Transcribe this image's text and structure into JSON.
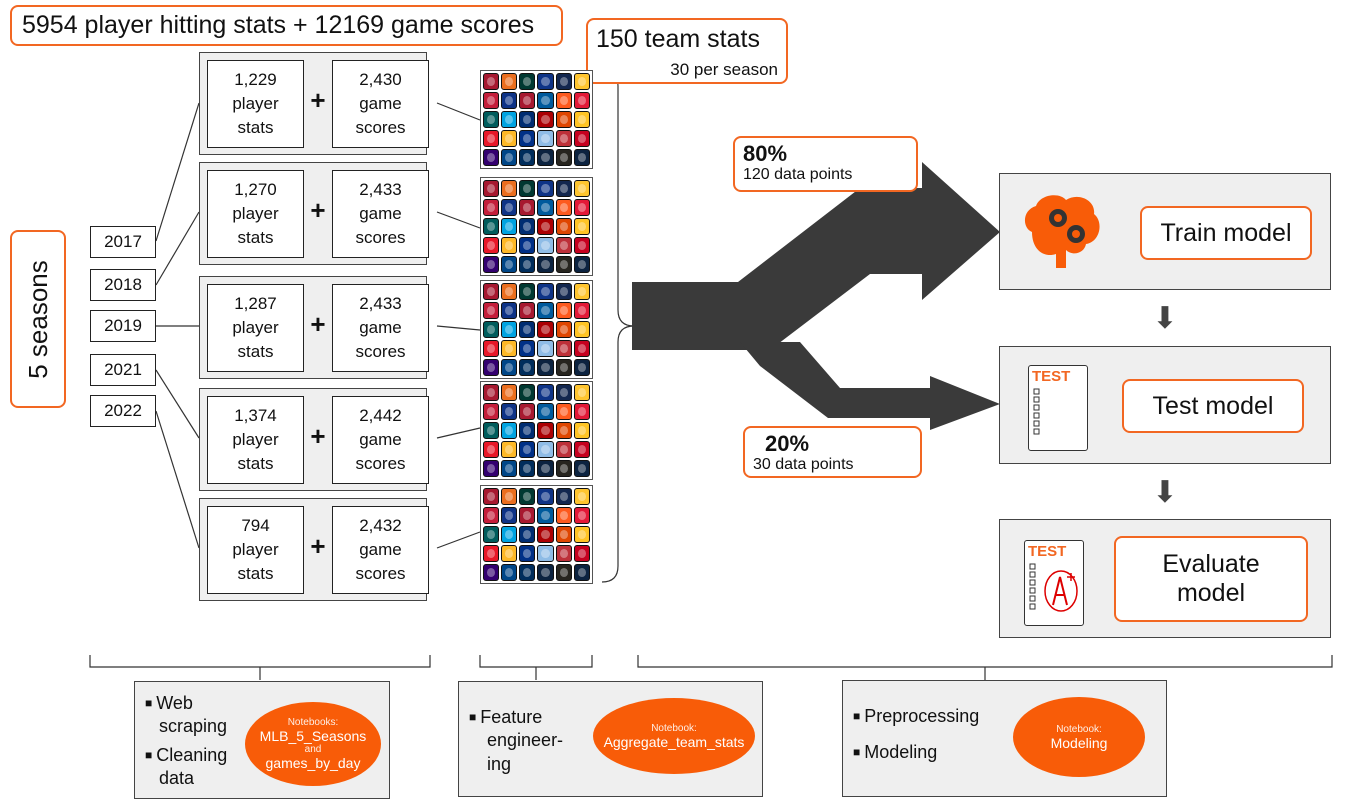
{
  "title": "5954 player hitting stats + 12169 game scores",
  "team_stats": {
    "title": "150 team stats",
    "subtitle": "30 per season"
  },
  "seasons_label": "5 seasons",
  "years": [
    "2017",
    "2018",
    "2019",
    "2021",
    "2022"
  ],
  "seasons": [
    {
      "player_count": "1,229",
      "game_count": "2,430"
    },
    {
      "player_count": "1,270",
      "game_count": "2,433"
    },
    {
      "player_count": "1,287",
      "game_count": "2,433"
    },
    {
      "player_count": "1,374",
      "game_count": "2,442"
    },
    {
      "player_count": "794",
      "game_count": "2,432"
    }
  ],
  "stat_labels": {
    "player_line1": "player",
    "player_line2": "stats",
    "game_line1": "game",
    "game_line2": "scores",
    "plus": "+"
  },
  "split": {
    "train": {
      "pct": "80%",
      "points": "120 data points"
    },
    "test": {
      "pct": "20%",
      "points": "30 data points"
    }
  },
  "models": {
    "train": "Train model",
    "test": "Test model",
    "evaluate_line1": "Evaluate",
    "evaluate_line2": "model",
    "test_icon_text": "TEST"
  },
  "bottom": {
    "scraping": {
      "bullet1_line1": "Web",
      "bullet1_line2": "scraping",
      "bullet2_line1": "Cleaning",
      "bullet2_line2": "data",
      "notebook_caption": "Notebooks:",
      "notebook_1": "MLB_5_Seasons",
      "notebook_and": "and",
      "notebook_2": "games_by_day"
    },
    "feature": {
      "bullet_line1": "Feature",
      "bullet_line2": "engineer-",
      "bullet_line3": "ing",
      "notebook_caption": "Notebook:",
      "notebook": "Aggregate_team_stats"
    },
    "modeling": {
      "bullet1": "Preprocessing",
      "bullet2": "Modeling",
      "notebook_caption": "Notebook:",
      "notebook": "Modeling"
    }
  },
  "colors": {
    "accent": "#f26722",
    "ellipse": "#f85c08",
    "panel": "#efefef",
    "arrow": "#3a3a3a"
  },
  "logo_colors": [
    "#a71930",
    "#eb6e1f",
    "#003831",
    "#0e3386",
    "#13274f",
    "#ffc52f",
    "#c41e3a",
    "#0e3386",
    "#a71930",
    "#005a9c",
    "#fd5a1e",
    "#e31937",
    "#005c5c",
    "#00a3e0",
    "#002d72",
    "#ab0003",
    "#df4601",
    "#ffc425",
    "#e81828",
    "#fdb827",
    "#003087",
    "#8fbce6",
    "#bd3039",
    "#c6011f",
    "#33006f",
    "#004687",
    "#002d5c",
    "#0c2340",
    "#27251f",
    "#0c2340"
  ]
}
